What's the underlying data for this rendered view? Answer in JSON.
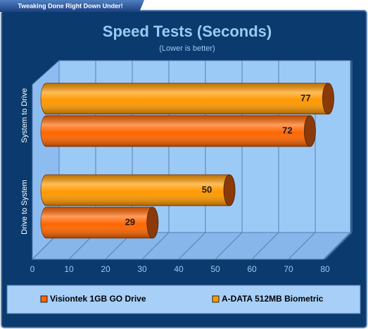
{
  "banner": "Tweaking Done Right Down Under!",
  "chart_data": {
    "type": "bar3d",
    "title": "Speed Tests (Seconds)",
    "subtitle": "(Lower is better)",
    "categories": [
      "System to Drive",
      "Drive to System"
    ],
    "series": [
      {
        "name": "Visiontek 1GB GO Drive",
        "color": "#ff6600",
        "values": [
          72,
          29
        ]
      },
      {
        "name": "A-DATA 512MB Biometric",
        "color": "#ff9900",
        "values": [
          77,
          50
        ]
      }
    ],
    "xlim": [
      0,
      80
    ],
    "xticks": [
      0,
      10,
      20,
      30,
      40,
      50,
      60,
      70,
      80
    ],
    "grid": true,
    "legend": "bottom"
  }
}
